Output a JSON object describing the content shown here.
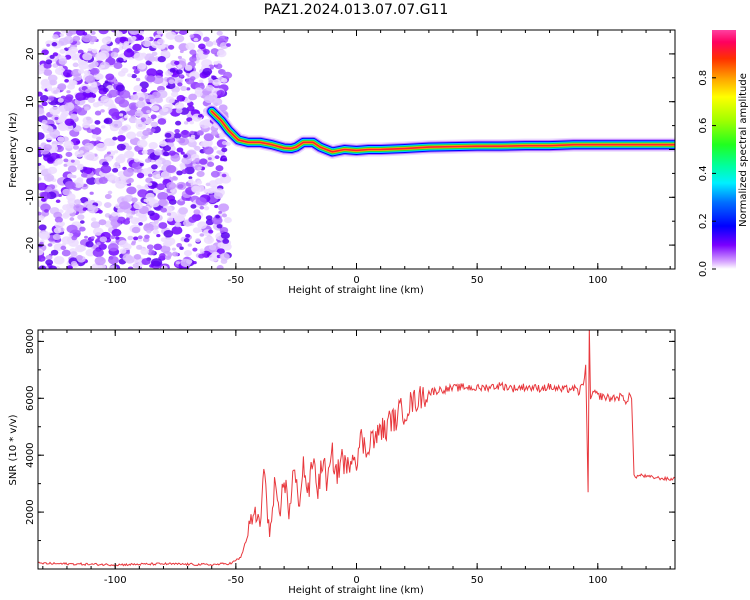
{
  "title": "PAZ1.2024.013.07.07.G11",
  "chart_data": [
    {
      "type": "heatmap",
      "xlabel": "Height of straight line (km)",
      "ylabel": "Frequency (Hz)",
      "xlim": [
        -132,
        132
      ],
      "ylim": [
        -25,
        25
      ],
      "x_ticks": [
        -100,
        -50,
        0,
        50,
        100
      ],
      "x_tick_labels": [
        "-100",
        "-50",
        "0",
        "50",
        "100"
      ],
      "y_ticks": [
        -20,
        -10,
        0,
        10,
        20
      ],
      "y_tick_labels": [
        "-20",
        "-10",
        "0",
        "10",
        "20"
      ],
      "colorbar": {
        "label": "Normalized spectral amplitude",
        "range": [
          0,
          1
        ],
        "ticks": [
          0.0,
          0.2,
          0.4,
          0.6,
          0.8
        ],
        "tick_labels": [
          "0.0",
          "0.2",
          "0.4",
          "0.6",
          "0.8"
        ],
        "colormap": "gist_ncar"
      },
      "noise_region_x": [
        -132,
        -53
      ],
      "signal_line": {
        "x": [
          -60,
          -56,
          -53,
          -51,
          -49,
          -45,
          -40,
          -35,
          -30,
          -27,
          -25,
          -22,
          -18,
          -15,
          -10,
          -5,
          0,
          5,
          10,
          20,
          30,
          40,
          50,
          60,
          70,
          80,
          90,
          95,
          100,
          110,
          120,
          132
        ],
        "freq": [
          8,
          6,
          4,
          3,
          2,
          1.5,
          1.5,
          1.0,
          0.3,
          0.2,
          0.5,
          1.5,
          1.5,
          0.5,
          -0.5,
          0,
          -0.2,
          0,
          0.0,
          0.2,
          0.5,
          0.6,
          0.7,
          0.7,
          0.8,
          0.8,
          1.0,
          1.0,
          1.0,
          1.0,
          1.0,
          1.0
        ]
      }
    },
    {
      "type": "line",
      "xlabel": "Height of straight line (km)",
      "ylabel": "SNR (10 * v/v)",
      "xlim": [
        -132,
        132
      ],
      "ylim": [
        0,
        8400
      ],
      "x_ticks": [
        -100,
        -50,
        0,
        50,
        100
      ],
      "x_tick_labels": [
        "-100",
        "-50",
        "0",
        "50",
        "100"
      ],
      "y_ticks": [
        2000,
        4000,
        6000,
        8000
      ],
      "y_tick_labels": [
        "2000",
        "4000",
        "6000",
        "8000"
      ],
      "color": "#e8383d",
      "series": [
        {
          "x": [
            -132,
            -120,
            -100,
            -80,
            -60,
            -52,
            -48,
            -45,
            -42,
            -40,
            -38,
            -36,
            -34,
            -32,
            -30,
            -28,
            -26,
            -24,
            -22,
            -20,
            -18,
            -16,
            -14,
            -12,
            -10,
            -8,
            -6,
            -4,
            -2,
            0,
            2,
            4,
            6,
            8,
            10,
            12,
            14,
            16,
            18,
            20,
            22,
            24,
            26,
            28,
            30,
            32,
            35,
            40,
            45,
            50,
            55,
            60,
            65,
            70,
            75,
            80,
            85,
            90,
            92,
            94,
            95,
            96,
            96.5,
            97,
            98,
            100,
            105,
            110,
            112,
            113,
            114,
            115,
            116,
            118,
            120,
            125,
            130,
            132
          ],
          "y": [
            200,
            180,
            150,
            180,
            150,
            200,
            400,
            1200,
            2000,
            1500,
            3600,
            1000,
            2800,
            1700,
            3300,
            2000,
            3500,
            2300,
            3700,
            2600,
            3900,
            2800,
            3800,
            3000,
            4000,
            3300,
            4000,
            3400,
            4100,
            3900,
            4600,
            4100,
            4700,
            4500,
            5000,
            4800,
            5300,
            5200,
            5600,
            5500,
            5800,
            5900,
            6000,
            6100,
            6200,
            6250,
            6300,
            6350,
            6400,
            6350,
            6400,
            6450,
            6350,
            6400,
            6350,
            6400,
            6300,
            6350,
            6200,
            6500,
            7200,
            2600,
            8400,
            6000,
            6200,
            6100,
            6000,
            6050,
            5900,
            6100,
            6000,
            3300,
            3250,
            3300,
            3250,
            3200,
            3150,
            3200
          ]
        }
      ]
    }
  ]
}
